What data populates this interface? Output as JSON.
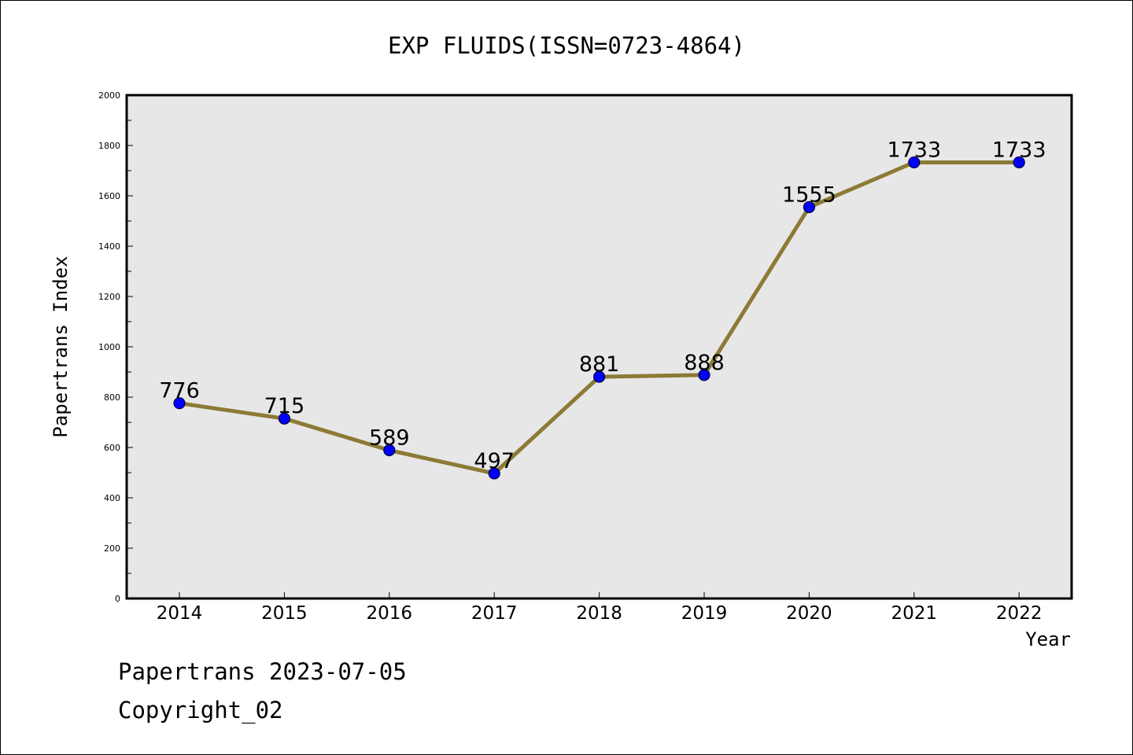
{
  "chart_data": {
    "type": "line",
    "title": "EXP FLUIDS(ISSN=0723-4864)",
    "xlabel": "Year",
    "ylabel": "Papertrans Index",
    "categories": [
      "2014",
      "2015",
      "2016",
      "2017",
      "2018",
      "2019",
      "2020",
      "2021",
      "2022"
    ],
    "series": [
      {
        "values": [
          776,
          715,
          589,
          497,
          881,
          888,
          1555,
          1733,
          1733
        ],
        "labels": [
          "776",
          "715",
          "589",
          "497",
          "881",
          "888",
          "1555",
          "1733",
          "1733"
        ]
      }
    ],
    "ylim": [
      0,
      2000
    ],
    "yticks": [
      "0",
      "200",
      "400",
      "600",
      "800",
      "1000",
      "1200",
      "1400",
      "1600",
      "1800",
      "2000"
    ],
    "grid": false,
    "colors": {
      "line": "#8c7a35",
      "marker_fill": "#0000ff",
      "marker_edge": "#00003a",
      "plot_background": "#e7e7e7"
    }
  },
  "footer": {
    "date_line": "Papertrans 2023-07-05",
    "copyright": "Copyright_02"
  }
}
